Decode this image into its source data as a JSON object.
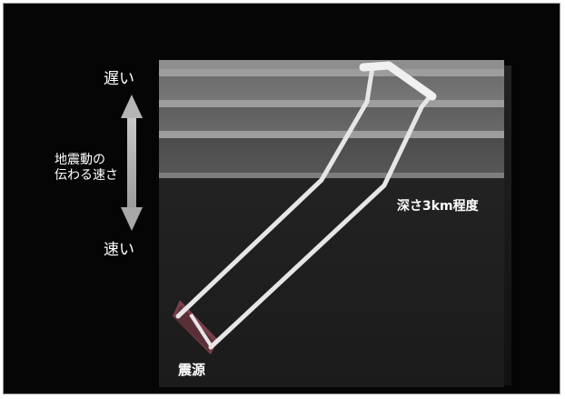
{
  "labels": {
    "slow": "遅い",
    "fast": "速い",
    "speed_line1": "地震動の",
    "speed_line2": "伝わる速さ",
    "depth": "深さ3km程度",
    "source": "震源"
  },
  "icons": {
    "speed_arrow": "double-headed-arrow-icon"
  },
  "colors": {
    "background": "#050505",
    "label_text": "#ffffff",
    "wave_path": "#e6e6e6",
    "source_marker": "#7a3f4a"
  }
}
